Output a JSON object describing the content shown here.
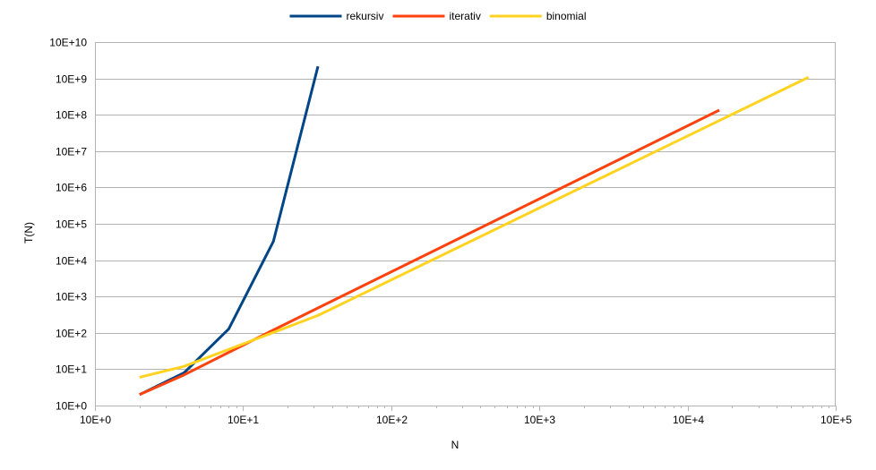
{
  "chart_data": {
    "type": "line",
    "title": "",
    "xlabel": "N",
    "ylabel": "T(N)",
    "x_scale": "log10",
    "y_scale": "log10",
    "xlim": [
      1,
      100000
    ],
    "ylim": [
      1,
      10000000000
    ],
    "x_tick_labels": [
      "10E+0",
      "10E+1",
      "10E+2",
      "10E+3",
      "10E+4",
      "10E+5"
    ],
    "y_tick_labels": [
      "10E+0",
      "10E+1",
      "10E+2",
      "10E+3",
      "10E+4",
      "10E+5",
      "10E+6",
      "10E+7",
      "10E+8",
      "10E+9",
      "10E+10"
    ],
    "grid": "horizontal",
    "legend_position": "top",
    "series": [
      {
        "name": "rekursiv",
        "color": "#004586",
        "points": [
          [
            2,
            2
          ],
          [
            4,
            8
          ],
          [
            8,
            128
          ],
          [
            16,
            32768
          ],
          [
            32,
            2147483648
          ]
        ]
      },
      {
        "name": "iterativ",
        "color": "#ff420e",
        "points": [
          [
            2,
            2
          ],
          [
            4,
            7
          ],
          [
            16,
            120
          ],
          [
            16384,
            134217728
          ]
        ]
      },
      {
        "name": "binomial",
        "color": "#ffd320",
        "points": [
          [
            2,
            6
          ],
          [
            4,
            12
          ],
          [
            32,
            300
          ],
          [
            65536,
            1073741824
          ]
        ]
      }
    ]
  }
}
